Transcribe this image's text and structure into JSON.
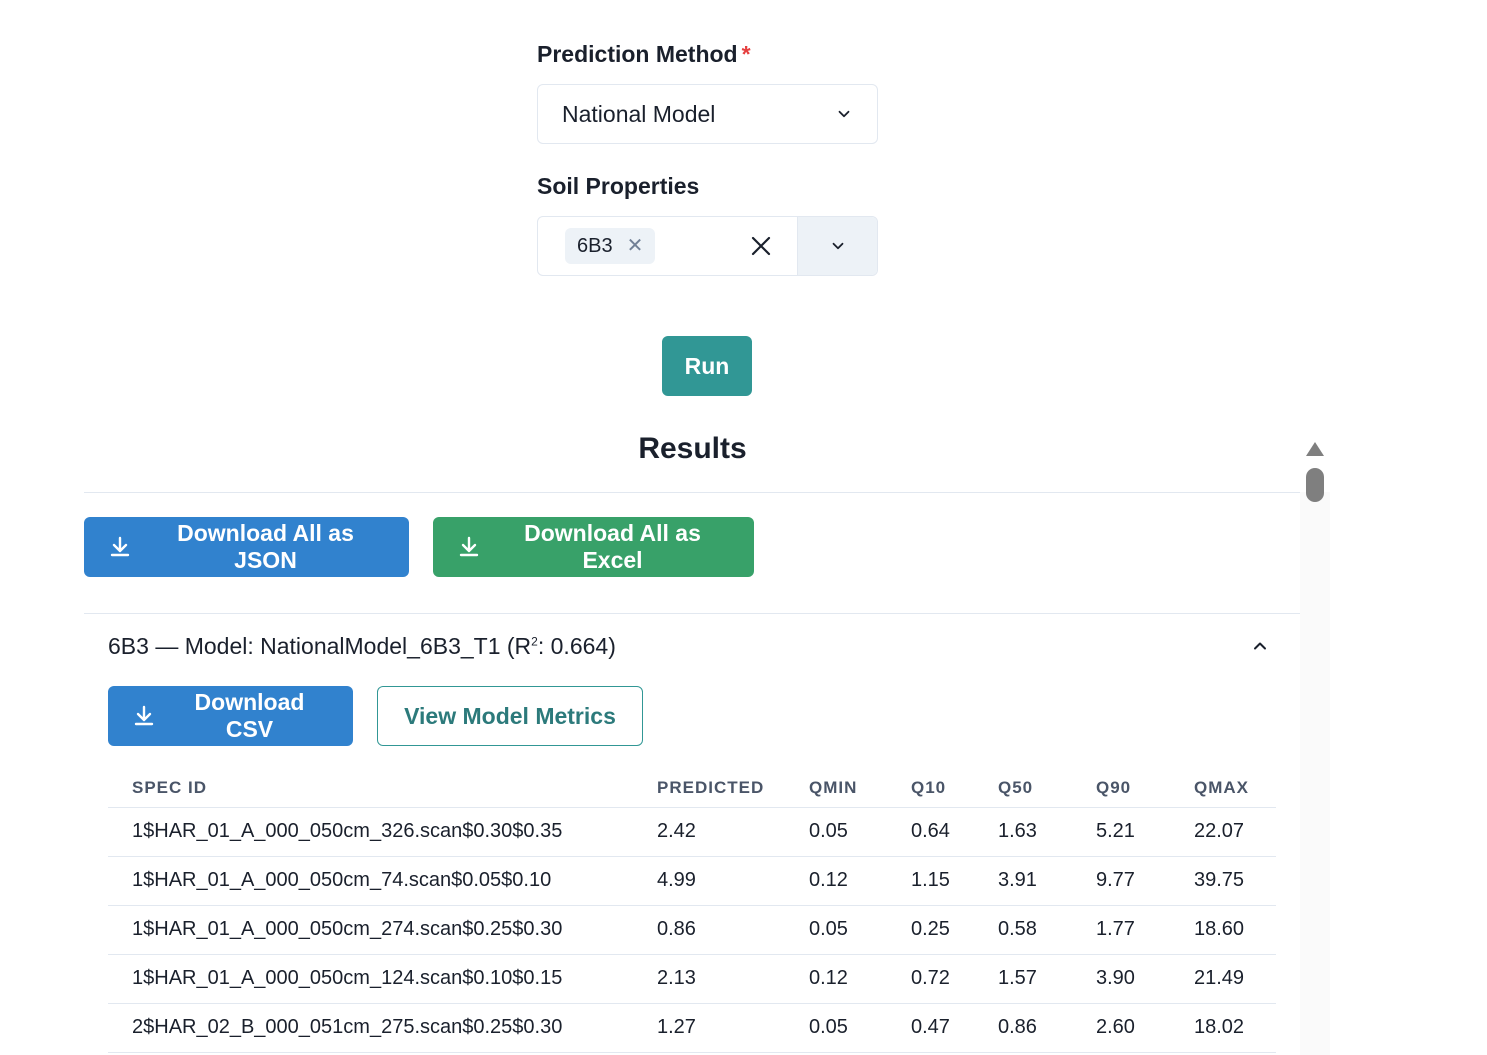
{
  "form": {
    "prediction_method": {
      "label": "Prediction Method",
      "required_mark": "*",
      "value": "National Model"
    },
    "soil_properties": {
      "label": "Soil Properties",
      "tags": [
        "6B3"
      ]
    },
    "run_label": "Run"
  },
  "results": {
    "title": "Results",
    "download_json_label": "Download All as JSON",
    "download_excel_label": "Download All as Excel",
    "accordion": {
      "title_prefix": "6B3 — Model: NationalModel_6B3_T1 (R",
      "title_sup": "2",
      "title_suffix": ": 0.664)",
      "download_csv_label": "Download CSV",
      "view_metrics_label": "View Model Metrics",
      "table": {
        "columns": [
          "SPEC ID",
          "PREDICTED",
          "QMIN",
          "Q10",
          "Q50",
          "Q90",
          "QMAX"
        ],
        "rows": [
          [
            "1$HAR_01_A_000_050cm_326.scan$0.30$0.35",
            "2.42",
            "0.05",
            "0.64",
            "1.63",
            "5.21",
            "22.07"
          ],
          [
            "1$HAR_01_A_000_050cm_74.scan$0.05$0.10",
            "4.99",
            "0.12",
            "1.15",
            "3.91",
            "9.77",
            "39.75"
          ],
          [
            "1$HAR_01_A_000_050cm_274.scan$0.25$0.30",
            "0.86",
            "0.05",
            "0.25",
            "0.58",
            "1.77",
            "18.60"
          ],
          [
            "1$HAR_01_A_000_050cm_124.scan$0.10$0.15",
            "2.13",
            "0.12",
            "0.72",
            "1.57",
            "3.90",
            "21.49"
          ],
          [
            "2$HAR_02_B_000_051cm_275.scan$0.25$0.30",
            "1.27",
            "0.05",
            "0.47",
            "0.86",
            "2.60",
            "18.02"
          ]
        ]
      }
    }
  },
  "colors": {
    "primary_blue": "#3182ce",
    "success_green": "#38a169",
    "teal": "#319795",
    "required_red": "#e53e3e"
  },
  "icons": [
    "chevron-down-icon",
    "close-icon",
    "download-icon",
    "chevron-up-icon"
  ]
}
